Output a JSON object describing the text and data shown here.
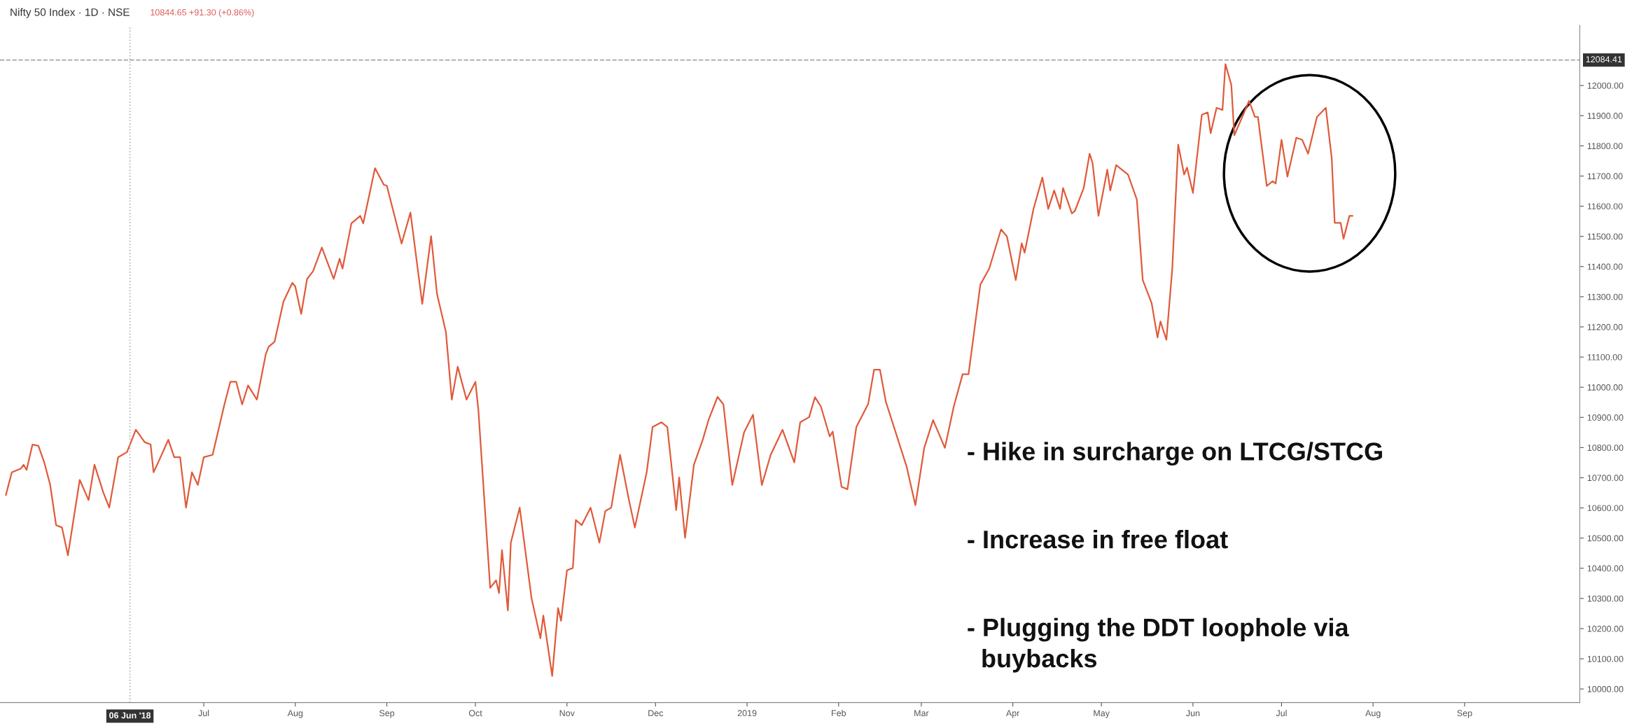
{
  "chart_data": {
    "type": "line",
    "title": "Nifty 50 Index · 1D · NSE",
    "subtitle": "10844.65 +91.30 (+0.86%)",
    "x": [
      "2018-04-25",
      "2018-04-27",
      "2018-04-30",
      "2018-05-01",
      "2018-05-02",
      "2018-05-04",
      "2018-05-06",
      "2018-05-08",
      "2018-05-10",
      "2018-05-12",
      "2018-05-14",
      "2018-05-16",
      "2018-05-20",
      "2018-05-23",
      "2018-05-25",
      "2018-05-28",
      "2018-05-30",
      "2018-06-02",
      "2018-06-05",
      "2018-06-08",
      "2018-06-11",
      "2018-06-13",
      "2018-06-14",
      "2018-06-16",
      "2018-06-19",
      "2018-06-21",
      "2018-06-23",
      "2018-06-25",
      "2018-06-27",
      "2018-06-29",
      "2018-07-01",
      "2018-07-04",
      "2018-07-08",
      "2018-07-10",
      "2018-07-12",
      "2018-07-14",
      "2018-07-16",
      "2018-07-19",
      "2018-07-22",
      "2018-07-23",
      "2018-07-25",
      "2018-07-28",
      "2018-07-31",
      "2018-08-01",
      "2018-08-03",
      "2018-08-05",
      "2018-08-07",
      "2018-08-10",
      "2018-08-14",
      "2018-08-16",
      "2018-08-17",
      "2018-08-20",
      "2018-08-23",
      "2018-08-24",
      "2018-08-28",
      "2018-08-31",
      "2018-09-01",
      "2018-09-06",
      "2018-09-09",
      "2018-09-13",
      "2018-09-16",
      "2018-09-18",
      "2018-09-21",
      "2018-09-23",
      "2018-09-25",
      "2018-09-28",
      "2018-10-01",
      "2018-10-02",
      "2018-10-06",
      "2018-10-08",
      "2018-10-09",
      "2018-10-10",
      "2018-10-12",
      "2018-10-13",
      "2018-10-16",
      "2018-10-20",
      "2018-10-23",
      "2018-10-24",
      "2018-10-27",
      "2018-10-29",
      "2018-10-30",
      "2018-11-01",
      "2018-11-03",
      "2018-11-04",
      "2018-11-06",
      "2018-11-09",
      "2018-11-12",
      "2018-11-14",
      "2018-11-16",
      "2018-11-19",
      "2018-11-22",
      "2018-11-24",
      "2018-11-28",
      "2018-11-30",
      "2018-12-03",
      "2018-12-05",
      "2018-12-08",
      "2018-12-09",
      "2018-12-11",
      "2018-12-14",
      "2018-12-17",
      "2018-12-19",
      "2018-12-22",
      "2018-12-24",
      "2018-12-27",
      "2018-12-31",
      "2019-01-03",
      "2019-01-06",
      "2019-01-09",
      "2019-01-13",
      "2019-01-17",
      "2019-01-19",
      "2019-01-22",
      "2019-01-24",
      "2019-01-26",
      "2019-01-29",
      "2019-01-30",
      "2019-02-02",
      "2019-02-04",
      "2019-02-07",
      "2019-02-11",
      "2019-02-13",
      "2019-02-15",
      "2019-02-17",
      "2019-02-24",
      "2019-02-27",
      "2019-03-02",
      "2019-03-05",
      "2019-03-09",
      "2019-03-12",
      "2019-03-15",
      "2019-03-17",
      "2019-03-21",
      "2019-03-24",
      "2019-03-28",
      "2019-03-30",
      "2019-04-02",
      "2019-04-04",
      "2019-04-05",
      "2019-04-08",
      "2019-04-11",
      "2019-04-13",
      "2019-04-15",
      "2019-04-17",
      "2019-04-18",
      "2019-04-21",
      "2019-04-22",
      "2019-04-25",
      "2019-04-27",
      "2019-04-28",
      "2019-04-30",
      "2019-05-03",
      "2019-05-04",
      "2019-05-06",
      "2019-05-10",
      "2019-05-13",
      "2019-05-15",
      "2019-05-18",
      "2019-05-20",
      "2019-05-21",
      "2019-05-23",
      "2019-05-25",
      "2019-05-27",
      "2019-05-29",
      "2019-05-30",
      "2019-06-01",
      "2019-06-04",
      "2019-06-06",
      "2019-06-07",
      "2019-06-09",
      "2019-06-11",
      "2019-06-12",
      "2019-06-14",
      "2019-06-15",
      "2019-06-18",
      "2019-06-20",
      "2019-06-22",
      "2019-06-23",
      "2019-06-26",
      "2019-06-28",
      "2019-06-29",
      "2019-07-01",
      "2019-07-03",
      "2019-07-06",
      "2019-07-08",
      "2019-07-10",
      "2019-07-13",
      "2019-07-16",
      "2019-07-18",
      "2019-07-19",
      "2019-07-21",
      "2019-07-22",
      "2019-07-24",
      "2019-07-25"
    ],
    "series": [
      {
        "color": "#e05a3a",
        "values": [
          10643,
          10718,
          10730,
          10743,
          10726,
          10810,
          10806,
          10751,
          10676,
          10543,
          10535,
          10443,
          10693,
          10626,
          10743,
          10651,
          10601,
          10768,
          10785,
          10859,
          10818,
          10810,
          10718,
          10760,
          10826,
          10768,
          10768,
          10601,
          10718,
          10676,
          10768,
          10776,
          10943,
          11018,
          11018,
          10943,
          11006,
          10959,
          11109,
          11134,
          11151,
          11284,
          11346,
          11334,
          11243,
          11359,
          11384,
          11463,
          11359,
          11426,
          11393,
          11543,
          11568,
          11543,
          11726,
          11671,
          11668,
          11476,
          11579,
          11276,
          11501,
          11309,
          11184,
          10959,
          11068,
          10959,
          11018,
          10926,
          10335,
          10360,
          10318,
          10460,
          10260,
          10485,
          10601,
          10301,
          10168,
          10243,
          10043,
          10268,
          10226,
          10393,
          10401,
          10560,
          10543,
          10601,
          10485,
          10590,
          10601,
          10776,
          10626,
          10535,
          10718,
          10868,
          10884,
          10868,
          10593,
          10701,
          10501,
          10743,
          10826,
          10893,
          10968,
          10943,
          10676,
          10851,
          10909,
          10676,
          10776,
          10859,
          10751,
          10884,
          10901,
          10967,
          10936,
          10837,
          10853,
          10670,
          10662,
          10868,
          10944,
          11058,
          11058,
          10952,
          10738,
          10609,
          10799,
          10891,
          10799,
          10936,
          11043,
          11043,
          11340,
          11393,
          11523,
          11500,
          11355,
          11477,
          11446,
          11591,
          11695,
          11591,
          11652,
          11591,
          11660,
          11576,
          11584,
          11660,
          11774,
          11743,
          11568,
          11721,
          11652,
          11736,
          11705,
          11622,
          11355,
          11279,
          11165,
          11218,
          11157,
          11393,
          11804,
          11705,
          11728,
          11644,
          11903,
          11911,
          11842,
          11926,
          11919,
          12071,
          12002,
          11835,
          11903,
          11949,
          11896,
          11896,
          11667,
          11683,
          11675,
          11820,
          11698,
          11827,
          11820,
          11774,
          11896,
          11926,
          11759,
          11545,
          11545,
          11492,
          11568,
          11568
        ]
      }
    ],
    "xlim": [
      "2018-04-23",
      "2019-10-10"
    ],
    "xticks": [
      {
        "value": "2018-07-01",
        "label": "Jul"
      },
      {
        "value": "2018-08-01",
        "label": "Aug"
      },
      {
        "value": "2018-09-01",
        "label": "Sep"
      },
      {
        "value": "2018-10-01",
        "label": "Oct"
      },
      {
        "value": "2018-11-01",
        "label": "Nov"
      },
      {
        "value": "2018-12-01",
        "label": "Dec"
      },
      {
        "value": "2019-01-01",
        "label": "2019"
      },
      {
        "value": "2019-02-01",
        "label": "Feb"
      },
      {
        "value": "2019-03-01",
        "label": "Mar"
      },
      {
        "value": "2019-04-01",
        "label": "Apr"
      },
      {
        "value": "2019-05-01",
        "label": "May"
      },
      {
        "value": "2019-06-01",
        "label": "Jun"
      },
      {
        "value": "2019-07-01",
        "label": "Jul"
      },
      {
        "value": "2019-08-01",
        "label": "Aug"
      },
      {
        "value": "2019-09-01",
        "label": "Sep"
      }
    ],
    "ylim": [
      9955,
      12199
    ],
    "yticks": [
      {
        "value": 10000,
        "label": "10000.00"
      },
      {
        "value": 10100,
        "label": "10100.00"
      },
      {
        "value": 10200,
        "label": "10200.00"
      },
      {
        "value": 10300,
        "label": "10300.00"
      },
      {
        "value": 10400,
        "label": "10400.00"
      },
      {
        "value": 10500,
        "label": "10500.00"
      },
      {
        "value": 10600,
        "label": "10600.00"
      },
      {
        "value": 10700,
        "label": "10700.00"
      },
      {
        "value": 10800,
        "label": "10800.00"
      },
      {
        "value": 10900,
        "label": "10900.00"
      },
      {
        "value": 11000,
        "label": "11000.00"
      },
      {
        "value": 11100,
        "label": "11100.00"
      },
      {
        "value": 11200,
        "label": "11200.00"
      },
      {
        "value": 11300,
        "label": "11300.00"
      },
      {
        "value": 11400,
        "label": "11400.00"
      },
      {
        "value": 11500,
        "label": "11500.00"
      },
      {
        "value": 11600,
        "label": "11600.00"
      },
      {
        "value": 11700,
        "label": "11700.00"
      },
      {
        "value": 11800,
        "label": "11800.00"
      },
      {
        "value": 11900,
        "label": "11900.00"
      },
      {
        "value": 12000,
        "label": "12000.00"
      }
    ],
    "ref_lines": [
      {
        "axis": "x",
        "value": "2018-06-06",
        "label": "06 Jun '18",
        "color": "#b0b0b0",
        "line_style": "dotted"
      },
      {
        "axis": "y",
        "value": 12084.41,
        "label": "12084.41",
        "color": "#9a9a9a",
        "line_style": "dashed"
      }
    ],
    "annotations": [
      "- Hike in surcharge on LTCG/STCG",
      "- Increase in free float",
      "- Plugging the DDT loophole via\n  buybacks"
    ],
    "grid": false,
    "legend": false,
    "line_style": "solid",
    "marker": "none"
  }
}
